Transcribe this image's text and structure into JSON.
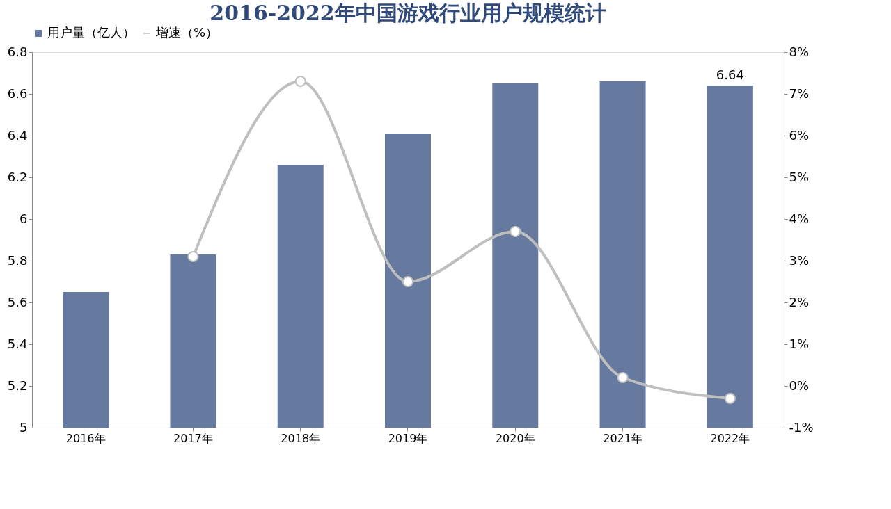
{
  "chart_data": {
    "type": "bar",
    "title": "2016-2022年中国游戏行业用户规模统计",
    "categories": [
      "2016年",
      "2017年",
      "2018年",
      "2019年",
      "2020年",
      "2021年",
      "2022年"
    ],
    "series": [
      {
        "name": "用户量（亿人）",
        "color": "#667aa0",
        "values": [
          5.65,
          5.83,
          6.26,
          6.41,
          6.65,
          6.66,
          6.64
        ],
        "value_labels": [
          null,
          null,
          null,
          null,
          null,
          null,
          "6.64"
        ]
      },
      {
        "name": "增速（%）",
        "type": "line",
        "axis": "y2",
        "color": "#bfbfbf",
        "marker": "circle",
        "line_style": "solid",
        "values": [
          null,
          3.1,
          7.3,
          2.5,
          3.7,
          0.2,
          -0.3
        ]
      }
    ],
    "ylim": [
      5,
      6.8
    ],
    "yticks": [
      5,
      5.2,
      5.4,
      5.6,
      5.8,
      6,
      6.2,
      6.4,
      6.6,
      6.8
    ],
    "y2lim": [
      -1,
      8
    ],
    "y2ticks": [
      {
        "value": -1,
        "label": "-1%"
      },
      {
        "value": 0,
        "label": "0%"
      },
      {
        "value": 1,
        "label": "1%"
      },
      {
        "value": 2,
        "label": "2%"
      },
      {
        "value": 3,
        "label": "3%"
      },
      {
        "value": 4,
        "label": "4%"
      },
      {
        "value": 5,
        "label": "5%"
      },
      {
        "value": 6,
        "label": "6%"
      },
      {
        "value": 7,
        "label": "7%"
      },
      {
        "value": 8,
        "label": "8%"
      }
    ],
    "grid": false,
    "legend": "top"
  }
}
